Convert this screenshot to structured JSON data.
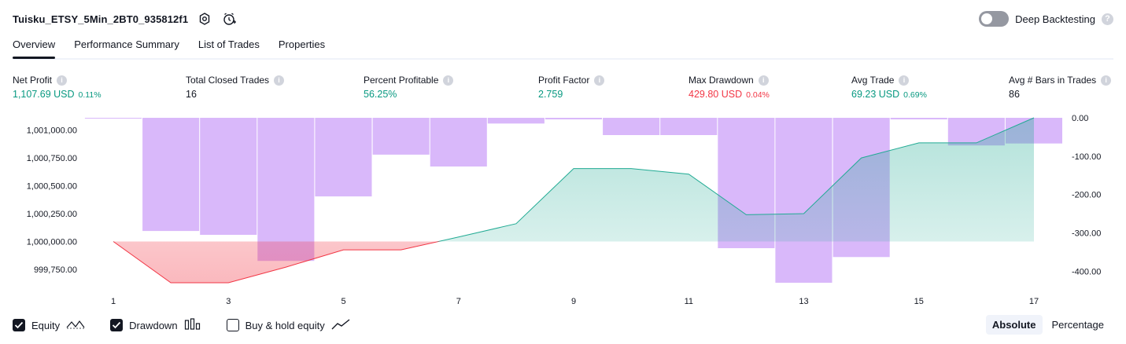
{
  "header": {
    "strategy_name": "Tuisku_ETSY_5Min_2BT0_935812f1",
    "deep_backtesting_label": "Deep Backtesting",
    "help_glyph": "?"
  },
  "tabs": [
    {
      "label": "Overview",
      "active": true
    },
    {
      "label": "Performance Summary",
      "active": false
    },
    {
      "label": "List of Trades",
      "active": false
    },
    {
      "label": "Properties",
      "active": false
    }
  ],
  "metrics": [
    {
      "label": "Net Profit",
      "value": "1,107.69 USD",
      "pct": "0.11%",
      "color": "#089981"
    },
    {
      "label": "Total Closed Trades",
      "value": "16",
      "pct": "",
      "color": "#131722"
    },
    {
      "label": "Percent Profitable",
      "value": "56.25%",
      "pct": "",
      "color": "#089981"
    },
    {
      "label": "Profit Factor",
      "value": "2.759",
      "pct": "",
      "color": "#089981"
    },
    {
      "label": "Max Drawdown",
      "value": "429.80 USD",
      "pct": "0.04%",
      "color": "#f23645"
    },
    {
      "label": "Avg Trade",
      "value": "69.23 USD",
      "pct": "0.69%",
      "color": "#089981"
    },
    {
      "label": "Avg # Bars in Trades",
      "value": "86",
      "pct": "",
      "color": "#131722"
    }
  ],
  "chart_data": {
    "type": "line",
    "x": [
      1,
      2,
      3,
      4,
      5,
      6,
      7,
      8,
      9,
      10,
      11,
      12,
      13,
      14,
      15,
      16,
      17
    ],
    "x_ticks": [
      "1",
      "3",
      "5",
      "7",
      "9",
      "11",
      "13",
      "15",
      "17"
    ],
    "series": [
      {
        "name": "Equity",
        "type": "area",
        "baseline": 1000000,
        "values": [
          1000000,
          999630,
          999630,
          999770,
          999925,
          999925,
          1000040,
          1000160,
          1000655,
          1000655,
          1000605,
          1000240,
          1000250,
          1000750,
          1000885,
          1000885,
          1001110
        ]
      },
      {
        "name": "Drawdown",
        "type": "bar",
        "axis": "right",
        "values": [
          -2,
          -295,
          -305,
          -373,
          -205,
          -96,
          -127,
          -15,
          -4,
          -45,
          -45,
          -340,
          -430,
          -363,
          -4,
          -72,
          -67
        ]
      }
    ],
    "y_left": {
      "ticks": [
        "1,001,000.00",
        "1,000,750.00",
        "1,000,500.00",
        "1,000,250.00",
        "1,000,000.00",
        "999,750.00"
      ],
      "range": [
        999630,
        1001110
      ]
    },
    "y_right": {
      "ticks": [
        "0.00",
        "-100.00",
        "-200.00",
        "-300.00",
        "-400.00"
      ],
      "range": [
        -430,
        0
      ]
    },
    "colors": {
      "positive": "#22ab94",
      "negative": "#f23645",
      "drawdown_bar": "#d9b8fa"
    }
  },
  "legend": [
    {
      "label": "Equity",
      "checked": true,
      "icon": "equity-line-icon"
    },
    {
      "label": "Drawdown",
      "checked": true,
      "icon": "drawdown-bars-icon"
    },
    {
      "label": "Buy & hold equity",
      "checked": false,
      "icon": "buy-hold-line-icon"
    }
  ],
  "modes": {
    "absolute": "Absolute",
    "percentage": "Percentage",
    "active": "absolute"
  }
}
